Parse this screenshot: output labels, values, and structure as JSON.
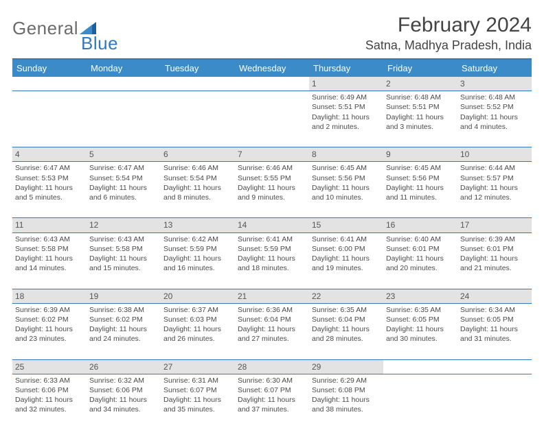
{
  "logo": {
    "general": "General",
    "blue": "Blue"
  },
  "header": {
    "month": "February 2024",
    "location": "Satna, Madhya Pradesh, India"
  },
  "weekdays": [
    "Sunday",
    "Monday",
    "Tuesday",
    "Wednesday",
    "Thursday",
    "Friday",
    "Saturday"
  ],
  "weeks": [
    [
      null,
      null,
      null,
      null,
      {
        "n": "1",
        "sr": "6:49 AM",
        "ss": "5:51 PM",
        "dl": "11 hours and 2 minutes."
      },
      {
        "n": "2",
        "sr": "6:48 AM",
        "ss": "5:51 PM",
        "dl": "11 hours and 3 minutes."
      },
      {
        "n": "3",
        "sr": "6:48 AM",
        "ss": "5:52 PM",
        "dl": "11 hours and 4 minutes."
      }
    ],
    [
      {
        "n": "4",
        "sr": "6:47 AM",
        "ss": "5:53 PM",
        "dl": "11 hours and 5 minutes."
      },
      {
        "n": "5",
        "sr": "6:47 AM",
        "ss": "5:54 PM",
        "dl": "11 hours and 6 minutes."
      },
      {
        "n": "6",
        "sr": "6:46 AM",
        "ss": "5:54 PM",
        "dl": "11 hours and 8 minutes."
      },
      {
        "n": "7",
        "sr": "6:46 AM",
        "ss": "5:55 PM",
        "dl": "11 hours and 9 minutes."
      },
      {
        "n": "8",
        "sr": "6:45 AM",
        "ss": "5:56 PM",
        "dl": "11 hours and 10 minutes."
      },
      {
        "n": "9",
        "sr": "6:45 AM",
        "ss": "5:56 PM",
        "dl": "11 hours and 11 minutes."
      },
      {
        "n": "10",
        "sr": "6:44 AM",
        "ss": "5:57 PM",
        "dl": "11 hours and 12 minutes."
      }
    ],
    [
      {
        "n": "11",
        "sr": "6:43 AM",
        "ss": "5:58 PM",
        "dl": "11 hours and 14 minutes."
      },
      {
        "n": "12",
        "sr": "6:43 AM",
        "ss": "5:58 PM",
        "dl": "11 hours and 15 minutes."
      },
      {
        "n": "13",
        "sr": "6:42 AM",
        "ss": "5:59 PM",
        "dl": "11 hours and 16 minutes."
      },
      {
        "n": "14",
        "sr": "6:41 AM",
        "ss": "5:59 PM",
        "dl": "11 hours and 18 minutes."
      },
      {
        "n": "15",
        "sr": "6:41 AM",
        "ss": "6:00 PM",
        "dl": "11 hours and 19 minutes."
      },
      {
        "n": "16",
        "sr": "6:40 AM",
        "ss": "6:01 PM",
        "dl": "11 hours and 20 minutes."
      },
      {
        "n": "17",
        "sr": "6:39 AM",
        "ss": "6:01 PM",
        "dl": "11 hours and 21 minutes."
      }
    ],
    [
      {
        "n": "18",
        "sr": "6:39 AM",
        "ss": "6:02 PM",
        "dl": "11 hours and 23 minutes."
      },
      {
        "n": "19",
        "sr": "6:38 AM",
        "ss": "6:02 PM",
        "dl": "11 hours and 24 minutes."
      },
      {
        "n": "20",
        "sr": "6:37 AM",
        "ss": "6:03 PM",
        "dl": "11 hours and 26 minutes."
      },
      {
        "n": "21",
        "sr": "6:36 AM",
        "ss": "6:04 PM",
        "dl": "11 hours and 27 minutes."
      },
      {
        "n": "22",
        "sr": "6:35 AM",
        "ss": "6:04 PM",
        "dl": "11 hours and 28 minutes."
      },
      {
        "n": "23",
        "sr": "6:35 AM",
        "ss": "6:05 PM",
        "dl": "11 hours and 30 minutes."
      },
      {
        "n": "24",
        "sr": "6:34 AM",
        "ss": "6:05 PM",
        "dl": "11 hours and 31 minutes."
      }
    ],
    [
      {
        "n": "25",
        "sr": "6:33 AM",
        "ss": "6:06 PM",
        "dl": "11 hours and 32 minutes."
      },
      {
        "n": "26",
        "sr": "6:32 AM",
        "ss": "6:06 PM",
        "dl": "11 hours and 34 minutes."
      },
      {
        "n": "27",
        "sr": "6:31 AM",
        "ss": "6:07 PM",
        "dl": "11 hours and 35 minutes."
      },
      {
        "n": "28",
        "sr": "6:30 AM",
        "ss": "6:07 PM",
        "dl": "11 hours and 37 minutes."
      },
      {
        "n": "29",
        "sr": "6:29 AM",
        "ss": "6:08 PM",
        "dl": "11 hours and 38 minutes."
      },
      null,
      null
    ]
  ],
  "labels": {
    "sunrise": "Sunrise: ",
    "sunset": "Sunset: ",
    "daylight": "Daylight: "
  },
  "colors": {
    "headerBg": "#3b8bc9",
    "sepLine": "#2f7abf",
    "dayBg": "#e3e3e3"
  }
}
